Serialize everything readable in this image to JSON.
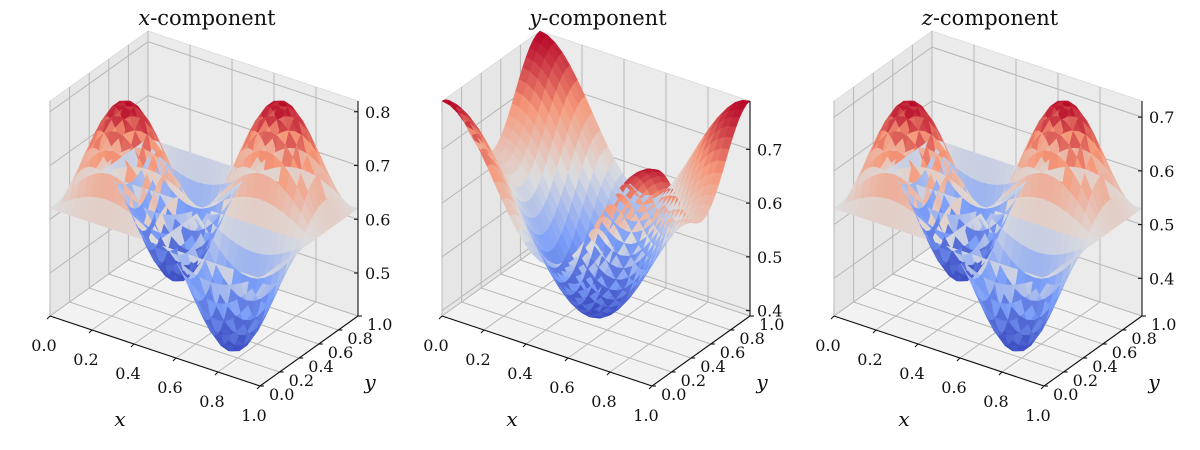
{
  "chart_data": [
    {
      "type": "surface3d",
      "title": "x-component",
      "title_var": "x",
      "title_rest": "-component",
      "xlabel": "x",
      "ylabel": "y",
      "xlim": [
        0,
        1
      ],
      "ylim": [
        0,
        1
      ],
      "zlim": [
        0.42,
        0.82
      ],
      "x_ticks": [
        "0.0",
        "0.2",
        "0.4",
        "0.6",
        "0.8",
        "1.0"
      ],
      "y_ticks": [
        "0.0",
        "0.2",
        "0.4",
        "0.6",
        "0.8",
        "1.0"
      ],
      "z_ticks": [
        0.5,
        0.6,
        0.7,
        0.8
      ],
      "z_tick_labels": [
        "0.5",
        "0.6",
        "0.7",
        "0.8"
      ],
      "colormap": "coolwarm",
      "grid": true,
      "surface": {
        "form": "z = base + a*cos(2*pi*x) + b*cos(2*pi*y) + c*sin(2*pi*x)*sin(2*pi*y)",
        "base": 0.62,
        "a": 0.0,
        "b": 0.0,
        "c": 0.2,
        "resolution": 28
      }
    },
    {
      "type": "surface3d",
      "title": "y-component",
      "title_var": "y",
      "title_rest": "-component",
      "xlabel": "x",
      "ylabel": "y",
      "xlim": [
        0,
        1
      ],
      "ylim": [
        0,
        1
      ],
      "zlim": [
        0.39,
        0.79
      ],
      "x_ticks": [
        "0.0",
        "0.2",
        "0.4",
        "0.6",
        "0.8",
        "1.0"
      ],
      "y_ticks": [
        "0.0",
        "0.2",
        "0.4",
        "0.6",
        "0.8",
        "1.0"
      ],
      "z_ticks": [
        0.4,
        0.5,
        0.6,
        0.7
      ],
      "z_tick_labels": [
        "0.4",
        "0.5",
        "0.6",
        "0.7"
      ],
      "colormap": "coolwarm",
      "grid": true,
      "surface": {
        "form": "z = base + a*cos(2*pi*x) + b*cos(2*pi*y) + c*sin(2*pi*x)*sin(2*pi*y)",
        "base": 0.59,
        "a": 0.12,
        "b": 0.08,
        "c": 0.0,
        "resolution": 28
      }
    },
    {
      "type": "surface3d",
      "title": "z-component",
      "title_var": "z",
      "title_rest": "-component",
      "xlabel": "x",
      "ylabel": "y",
      "xlim": [
        0,
        1
      ],
      "ylim": [
        0,
        1
      ],
      "zlim": [
        0.33,
        0.73
      ],
      "x_ticks": [
        "0.0",
        "0.2",
        "0.4",
        "0.6",
        "0.8",
        "1.0"
      ],
      "y_ticks": [
        "0.0",
        "0.2",
        "0.4",
        "0.6",
        "0.8",
        "1.0"
      ],
      "z_ticks": [
        0.4,
        0.5,
        0.6,
        0.7
      ],
      "z_tick_labels": [
        "0.4",
        "0.5",
        "0.6",
        "0.7"
      ],
      "colormap": "coolwarm",
      "grid": true,
      "surface": {
        "form": "z = base + a*cos(2*pi*x) + b*cos(2*pi*y) + c*sin(2*pi*x)*sin(2*pi*y)",
        "base": 0.53,
        "a": 0.0,
        "b": 0.0,
        "c": 0.2,
        "resolution": 28
      }
    }
  ]
}
